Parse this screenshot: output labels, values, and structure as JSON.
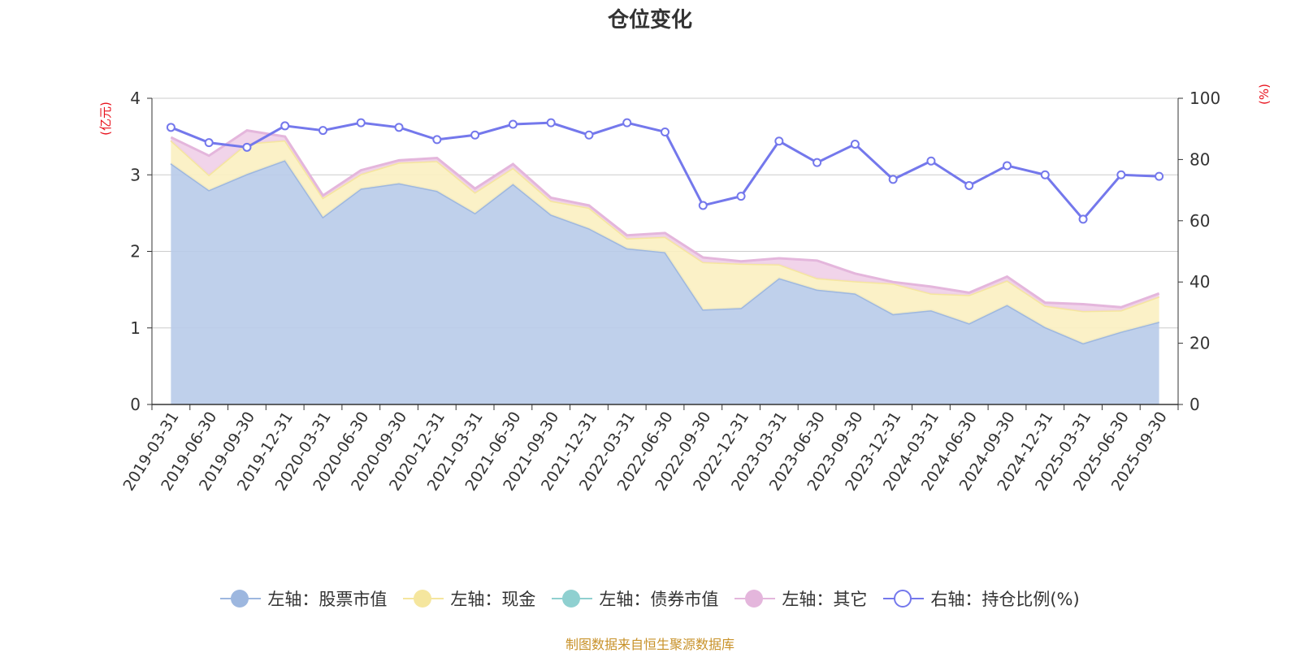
{
  "title": "仓位变化",
  "source_note": "制图数据来自恒生聚源数据库",
  "colors": {
    "stock": "#9db7df",
    "stock_fill": "#b8cbe9",
    "cash": "#f5e69e",
    "cash_fill": "#fbefc1",
    "bond": "#8fd0d0",
    "other": "#e4b6dc",
    "other_fill": "#efcfe8",
    "ratio": "#7478ec",
    "axis_unit": "#e8111c",
    "grid": "#cccccc",
    "text": "#333333"
  },
  "legend": [
    {
      "label": "左轴：股票市值",
      "key": "stock",
      "style": "dot"
    },
    {
      "label": "左轴：现金",
      "key": "cash",
      "style": "dot"
    },
    {
      "label": "左轴：债券市值",
      "key": "bond",
      "style": "dot"
    },
    {
      "label": "左轴：其它",
      "key": "other",
      "style": "dot"
    },
    {
      "label": "右轴：持仓比例(%)",
      "key": "ratio",
      "style": "ring"
    }
  ],
  "chart_data": {
    "type": "area",
    "title": "仓位变化",
    "left_axis": {
      "unit": "(亿元)",
      "ylim": [
        0,
        4
      ],
      "ticks": [
        0,
        1,
        2,
        3,
        4
      ]
    },
    "right_axis": {
      "unit": "(%)",
      "ylim": [
        0,
        100
      ],
      "ticks": [
        0,
        20,
        40,
        60,
        80,
        100
      ]
    },
    "categories": [
      "2019-03-31",
      "2019-06-30",
      "2019-09-30",
      "2019-12-31",
      "2020-03-31",
      "2020-06-30",
      "2020-09-30",
      "2020-12-31",
      "2021-03-31",
      "2021-06-30",
      "2021-09-30",
      "2021-12-31",
      "2022-03-31",
      "2022-06-30",
      "2022-09-30",
      "2022-12-31",
      "2023-03-31",
      "2023-06-30",
      "2023-09-30",
      "2023-12-31",
      "2024-03-31",
      "2024-06-30",
      "2024-09-30",
      "2024-12-31",
      "2025-03-31",
      "2025-06-30",
      "2025-09-30"
    ],
    "stacked_series": [
      {
        "name": "股票市值",
        "axis": "left",
        "key": "stock",
        "values": [
          3.15,
          2.8,
          3.01,
          3.19,
          2.45,
          2.82,
          2.89,
          2.79,
          2.5,
          2.88,
          2.48,
          2.3,
          2.04,
          1.99,
          1.24,
          1.26,
          1.65,
          1.5,
          1.45,
          1.18,
          1.23,
          1.06,
          1.3,
          1.01,
          0.8,
          0.95,
          1.08
        ]
      },
      {
        "name": "现金",
        "axis": "left",
        "key": "cash",
        "values": [
          0.3,
          0.2,
          0.4,
          0.26,
          0.25,
          0.19,
          0.27,
          0.39,
          0.27,
          0.21,
          0.18,
          0.27,
          0.13,
          0.2,
          0.62,
          0.58,
          0.18,
          0.15,
          0.16,
          0.4,
          0.22,
          0.37,
          0.32,
          0.28,
          0.42,
          0.28,
          0.33
        ]
      },
      {
        "name": "债券市值",
        "axis": "left",
        "key": "bond",
        "values": [
          0,
          0,
          0,
          0,
          0,
          0,
          0,
          0,
          0,
          0,
          0,
          0,
          0,
          0,
          0,
          0,
          0,
          0,
          0,
          0,
          0,
          0,
          0,
          0,
          0,
          0,
          0
        ]
      },
      {
        "name": "其它",
        "axis": "left",
        "key": "other",
        "values": [
          0.04,
          0.25,
          0.17,
          0.05,
          0.03,
          0.05,
          0.03,
          0.04,
          0.05,
          0.05,
          0.04,
          0.03,
          0.04,
          0.05,
          0.06,
          0.03,
          0.08,
          0.23,
          0.1,
          0.02,
          0.09,
          0.03,
          0.05,
          0.04,
          0.09,
          0.04,
          0.04
        ]
      }
    ],
    "line_series": {
      "name": "持仓比例(%)",
      "axis": "right",
      "key": "ratio",
      "values": [
        90.5,
        85.5,
        84.0,
        91.0,
        89.5,
        92.0,
        90.5,
        86.5,
        88.0,
        91.5,
        92.0,
        88.0,
        92.0,
        89.0,
        65.0,
        68.0,
        86.0,
        79.0,
        85.0,
        73.5,
        79.5,
        71.5,
        78.0,
        75.0,
        60.5,
        75.0,
        74.5
      ]
    }
  }
}
